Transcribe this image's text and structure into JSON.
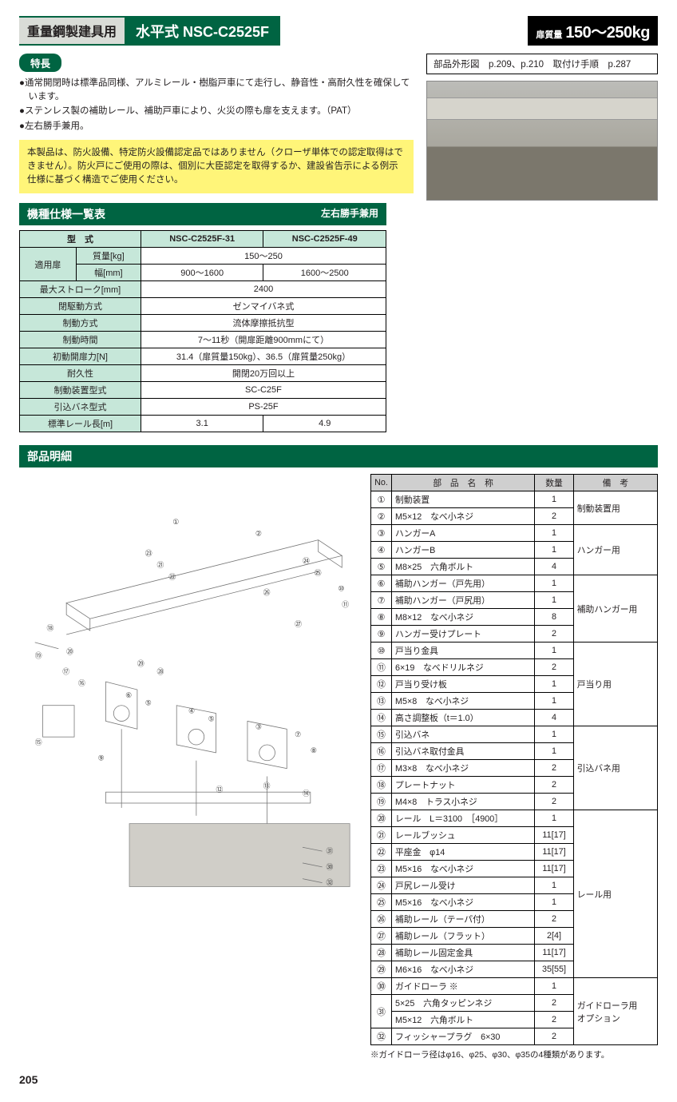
{
  "header": {
    "category": "重量鋼製建具用",
    "model": "水平式 NSC-C2525F",
    "weight_label": "扉質量",
    "weight_value": "150〜250kg"
  },
  "features": {
    "heading": "特長",
    "items": [
      "通常開閉時は標準品同様、アルミレール・樹脂戸車にて走行し、静音性・高耐久性を確保しています。",
      "ステンレス製の補助レール、補助戸車により、火災の際も扉を支えます。（PAT）",
      "左右勝手兼用。"
    ],
    "notice": "本製品は、防火設備、特定防火設備認定品ではありません（クローザ単体での認定取得はできません）。防火戸にご使用の際は、個別に大臣認定を取得するか、建設省告示による例示仕様に基づく構造でご使用ください。"
  },
  "ref": "部品外形図　p.209、p.210　取付け手順　p.287",
  "spec_section": {
    "title": "機種仕様一覧表",
    "right": "左右勝手兼用"
  },
  "spec": {
    "col_type": "型　式",
    "cols": [
      "NSC-C2525F-31",
      "NSC-C2525F-49"
    ],
    "rows": [
      {
        "h1": "適用扉",
        "h2": "質量[kg]",
        "span": true,
        "v": "150〜250"
      },
      {
        "h1": "",
        "h2": "幅[mm]",
        "v1": "900〜1600",
        "v2": "1600〜2500"
      },
      {
        "h": "最大ストローク[mm]",
        "span": true,
        "v": "2400"
      },
      {
        "h": "閉駆動方式",
        "span": true,
        "v": "ゼンマイバネ式"
      },
      {
        "h": "制動方式",
        "span": true,
        "v": "流体摩擦抵抗型"
      },
      {
        "h": "制動時間",
        "span": true,
        "v": "7〜11秒（開扉距離900mmにて）"
      },
      {
        "h": "初動開扉力[N]",
        "span": true,
        "v": "31.4（扉質量150kg）、36.5（扉質量250kg）"
      },
      {
        "h": "耐久性",
        "span": true,
        "v": "開閉20万回以上"
      },
      {
        "h": "制動装置型式",
        "span": true,
        "v": "SC-C25F"
      },
      {
        "h": "引込バネ型式",
        "span": true,
        "v": "PS-25F"
      },
      {
        "h": "標準レール長[m]",
        "v1": "3.1",
        "v2": "4.9"
      }
    ]
  },
  "parts_title": "部品明細",
  "parts_header": {
    "no": "No.",
    "name": "部　品　名　称",
    "qty": "数量",
    "note": "備　考"
  },
  "parts": [
    {
      "no": "①",
      "name": "制動装置",
      "qty": "1",
      "note": "制動装置用",
      "group_start": true
    },
    {
      "no": "②",
      "name": "M5×12　なべ小ネジ",
      "qty": "2"
    },
    {
      "no": "③",
      "name": "ハンガーA",
      "qty": "1",
      "note": "ハンガー用",
      "group_start": true
    },
    {
      "no": "④",
      "name": "ハンガーB",
      "qty": "1"
    },
    {
      "no": "⑤",
      "name": "M8×25　六角ボルト",
      "qty": "4"
    },
    {
      "no": "⑥",
      "name": "補助ハンガー（戸先用）",
      "qty": "1",
      "note": "補助ハンガー用",
      "group_start": true
    },
    {
      "no": "⑦",
      "name": "補助ハンガー（戸尻用）",
      "qty": "1"
    },
    {
      "no": "⑧",
      "name": "M8×12　なべ小ネジ",
      "qty": "8"
    },
    {
      "no": "⑨",
      "name": "ハンガー受けプレート",
      "qty": "2"
    },
    {
      "no": "⑩",
      "name": "戸当り金具",
      "qty": "1",
      "note": "戸当り用",
      "group_start": true
    },
    {
      "no": "⑪",
      "name": "6×19　なべドリルネジ",
      "qty": "2"
    },
    {
      "no": "⑫",
      "name": "戸当り受け板",
      "qty": "1"
    },
    {
      "no": "⑬",
      "name": "M5×8　なべ小ネジ",
      "qty": "1"
    },
    {
      "no": "⑭",
      "name": "高さ調整板（t＝1.0）",
      "qty": "4"
    },
    {
      "no": "⑮",
      "name": "引込バネ",
      "qty": "1",
      "note": "引込バネ用",
      "group_start": true
    },
    {
      "no": "⑯",
      "name": "引込バネ取付金具",
      "qty": "1"
    },
    {
      "no": "⑰",
      "name": "M3×8　なべ小ネジ",
      "qty": "2"
    },
    {
      "no": "⑱",
      "name": "プレートナット",
      "qty": "2"
    },
    {
      "no": "⑲",
      "name": "M4×8　トラス小ネジ",
      "qty": "2"
    },
    {
      "no": "⑳",
      "name": "レール　L＝3100　［4900］",
      "qty": "1",
      "note": "レール用",
      "group_start": true
    },
    {
      "no": "㉑",
      "name": "レールブッシュ",
      "qty": "11[17]"
    },
    {
      "no": "㉒",
      "name": "平座金　φ14",
      "qty": "11[17]"
    },
    {
      "no": "㉓",
      "name": "M5×16　なべ小ネジ",
      "qty": "11[17]"
    },
    {
      "no": "㉔",
      "name": "戸尻レール受け",
      "qty": "1"
    },
    {
      "no": "㉕",
      "name": "M5×16　なべ小ネジ",
      "qty": "1"
    },
    {
      "no": "㉖",
      "name": "補助レール（テーパ付）",
      "qty": "2"
    },
    {
      "no": "㉗",
      "name": "補助レール（フラット）",
      "qty": "2[4]"
    },
    {
      "no": "㉘",
      "name": "補助レール固定金具",
      "qty": "11[17]"
    },
    {
      "no": "㉙",
      "name": "M6×16　なべ小ネジ",
      "qty": "35[55]"
    },
    {
      "no": "㉚",
      "name": "ガイドローラ ※",
      "qty": "1",
      "note": "ガイドローラ用\nオプション",
      "group_start": true
    },
    {
      "no": "㉛",
      "name": "5×25　六角タッピンネジ",
      "qty": "2"
    },
    {
      "no": "",
      "name_sub": "M5×12　六角ボルト",
      "qty": "2"
    },
    {
      "no": "㉜",
      "name": "フィッシャープラグ　6×30",
      "qty": "2"
    }
  ],
  "footnote": "※ガイドローラ径はφ16、φ25、φ30、φ35の4種類があります。",
  "page": "205",
  "style": {
    "green": "#006442",
    "yellow": "#fff579",
    "grayhdr": "#cfcfcf",
    "spechdr": "#c6e7d9"
  }
}
